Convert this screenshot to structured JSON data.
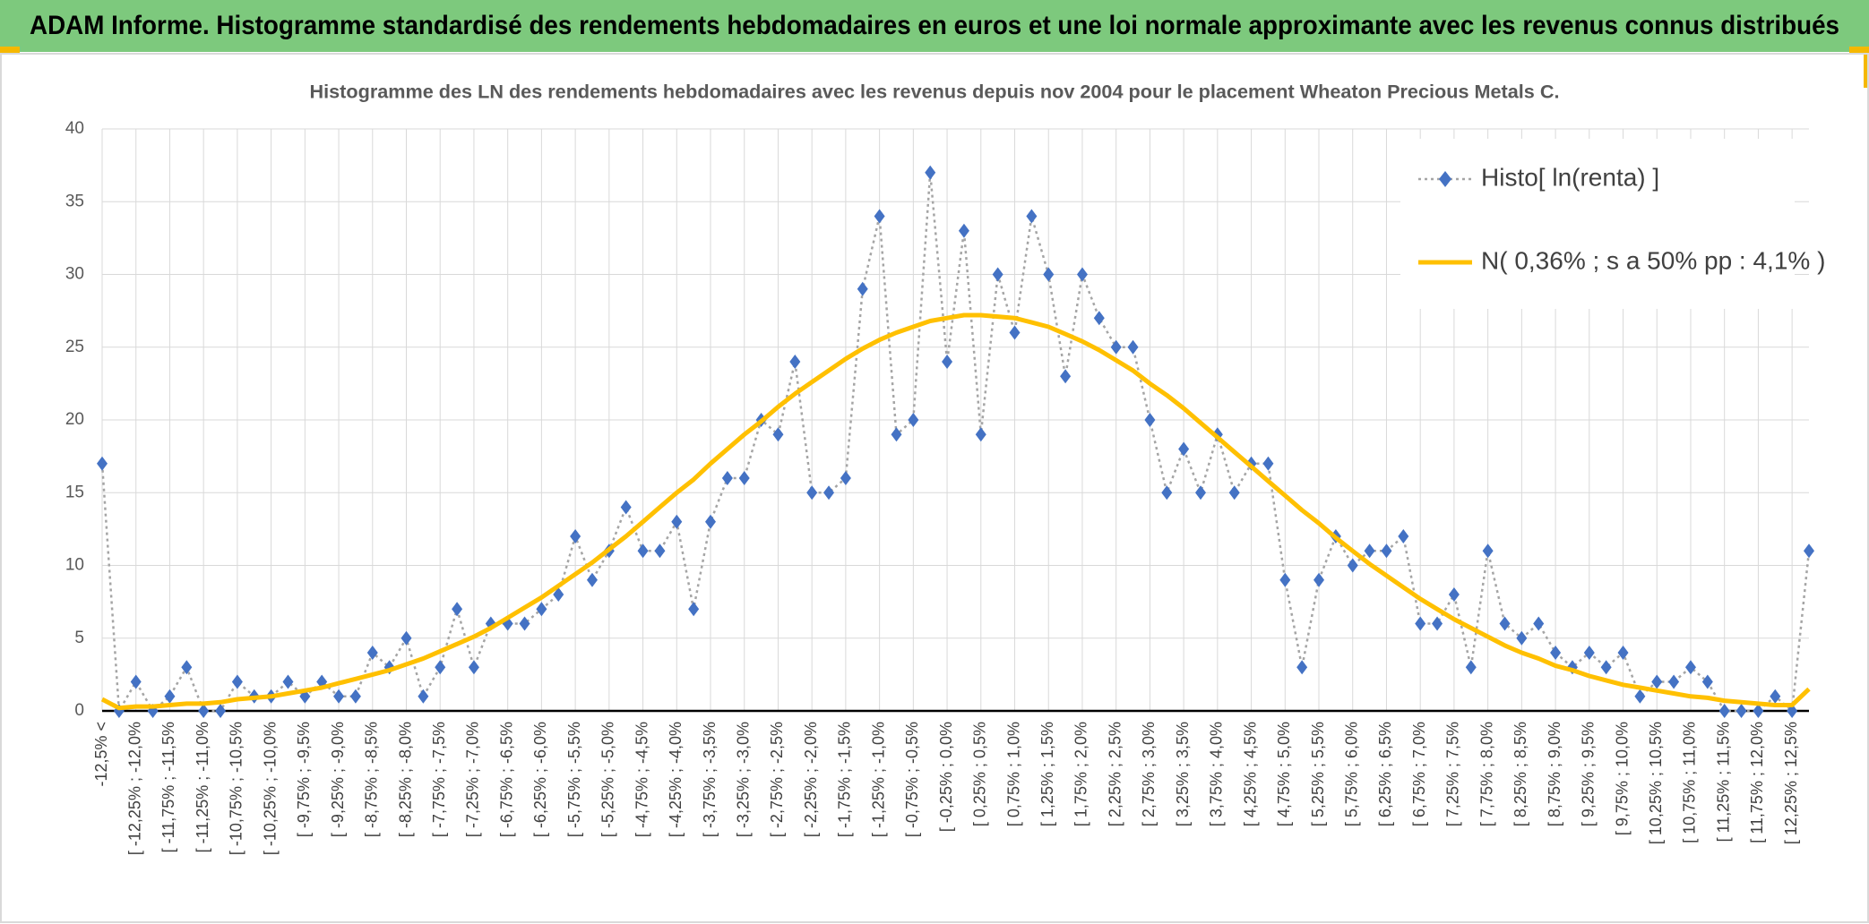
{
  "header": {
    "title": "ADAM Informe. Histogramme standardisé des rendements hebdomadaires en euros et une loi normale approximante avec les revenus connus distribués"
  },
  "chart_data": {
    "type": "line",
    "title": "Histogramme des LN des rendements hebdomadaires avec les revenus depuis nov 2004 pour le placement Wheaton Precious Metals C.",
    "categories": [
      "-12,5% <",
      null,
      "[ -12,25% ; -12,0%",
      null,
      "[ -11,75% ; -11,5%",
      null,
      "[ -11,25% ; -11,0%",
      null,
      "[ -10,75% ; -10,5%",
      null,
      "[ -10,25% ; -10,0%",
      null,
      "[ -9,75% ; -9,5%",
      null,
      "[ -9,25% ; -9,0%",
      null,
      "[ -8,75% ; -8,5%",
      null,
      "[ -8,25% ; -8,0%",
      null,
      "[ -7,75% ; -7,5%",
      null,
      "[ -7,25% ; -7,0%",
      null,
      "[ -6,75% ; -6,5%",
      null,
      "[ -6,25% ; -6,0%",
      null,
      "[ -5,75% ; -5,5%",
      null,
      "[ -5,25% ; -5,0%",
      null,
      "[ -4,75% ; -4,5%",
      null,
      "[ -4,25% ; -4,0%",
      null,
      "[ -3,75% ; -3,5%",
      null,
      "[ -3,25% ; -3,0%",
      null,
      "[ -2,75% ; -2,5%",
      null,
      "[ -2,25% ; -2,0%",
      null,
      "[ -1,75% ; -1,5%",
      null,
      "[ -1,25% ; -1,0%",
      null,
      "[ -0,75% ; -0,5%",
      null,
      "[ -0,25% ; 0,0%",
      null,
      "[ 0,25% ; 0,5%",
      null,
      "[ 0,75% ; 1,0%",
      null,
      "[ 1,25% ; 1,5%",
      null,
      "[ 1,75% ; 2,0%",
      null,
      "[ 2,25% ; 2,5%",
      null,
      "[ 2,75% ; 3,0%",
      null,
      "[ 3,25% ; 3,5%",
      null,
      "[ 3,75% ; 4,0%",
      null,
      "[ 4,25% ; 4,5%",
      null,
      "[ 4,75% ; 5,0%",
      null,
      "[ 5,25% ; 5,5%",
      null,
      "[ 5,75% ; 6,0%",
      null,
      "[ 6,25% ; 6,5%",
      null,
      "[ 6,75% ; 7,0%",
      null,
      "[ 7,25% ; 7,5%",
      null,
      "[ 7,75% ; 8,0%",
      null,
      "[ 8,25% ; 8,5%",
      null,
      "[ 8,75% ; 9,0%",
      null,
      "[ 9,25% ; 9,5%",
      null,
      "[ 9,75% ; 10,0%",
      null,
      "[ 10,25% ; 10,5%",
      null,
      "[ 10,75% ; 11,0%",
      null,
      "[ 11,25% ; 11,5%",
      null,
      "[ 11,75% ; 12,0%",
      null,
      "[ 12,25% ; 12,5%",
      null
    ],
    "series": [
      {
        "name": "Histo[ ln(renta) ]",
        "color": "#4472c4",
        "line_color": "#a5a5a5",
        "marker": "diamond",
        "values": [
          17,
          0,
          2,
          0,
          1,
          3,
          0,
          0,
          2,
          1,
          1,
          2,
          1,
          2,
          1,
          1,
          4,
          3,
          5,
          1,
          3,
          7,
          3,
          6,
          6,
          6,
          7,
          8,
          12,
          9,
          11,
          14,
          11,
          11,
          13,
          7,
          13,
          16,
          16,
          20,
          19,
          24,
          15,
          15,
          16,
          29,
          34,
          19,
          20,
          37,
          24,
          33,
          19,
          30,
          26,
          34,
          30,
          23,
          30,
          27,
          25,
          25,
          20,
          15,
          18,
          15,
          19,
          15,
          17,
          17,
          9,
          3,
          9,
          12,
          10,
          11,
          11,
          12,
          6,
          6,
          8,
          3,
          11,
          6,
          5,
          6,
          4,
          3,
          4,
          3,
          4,
          1,
          2,
          2,
          3,
          2,
          0,
          0,
          0,
          1,
          0,
          11
        ]
      },
      {
        "name": "N( 0,36% ; s a 50% pp : 4,1% )",
        "color": "#ffc000",
        "marker": "none",
        "values": [
          0.8,
          0.2,
          0.3,
          0.3,
          0.4,
          0.5,
          0.5,
          0.6,
          0.8,
          0.9,
          1.0,
          1.2,
          1.4,
          1.6,
          1.9,
          2.2,
          2.5,
          2.8,
          3.2,
          3.6,
          4.1,
          4.6,
          5.1,
          5.7,
          6.4,
          7.1,
          7.8,
          8.6,
          9.4,
          10.2,
          11.1,
          12.0,
          13.0,
          14.0,
          15.0,
          15.9,
          17.0,
          18.0,
          19.0,
          19.9,
          20.9,
          21.8,
          22.6,
          23.4,
          24.2,
          24.9,
          25.5,
          26.0,
          26.4,
          26.8,
          27.0,
          27.2,
          27.2,
          27.1,
          27.0,
          26.7,
          26.4,
          25.9,
          25.4,
          24.8,
          24.1,
          23.4,
          22.5,
          21.7,
          20.8,
          19.8,
          18.8,
          17.8,
          16.8,
          15.8,
          14.8,
          13.8,
          12.9,
          11.9,
          11.0,
          10.1,
          9.3,
          8.5,
          7.7,
          7.0,
          6.3,
          5.7,
          5.1,
          4.5,
          4.0,
          3.6,
          3.1,
          2.8,
          2.4,
          2.1,
          1.8,
          1.6,
          1.4,
          1.2,
          1.0,
          0.9,
          0.7,
          0.6,
          0.5,
          0.4,
          0.4,
          1.5
        ]
      }
    ],
    "ylim": [
      0,
      40
    ],
    "yticks": [
      0,
      5,
      10,
      15,
      20,
      25,
      30,
      35,
      40
    ],
    "grid": true,
    "legend": "upper right"
  }
}
